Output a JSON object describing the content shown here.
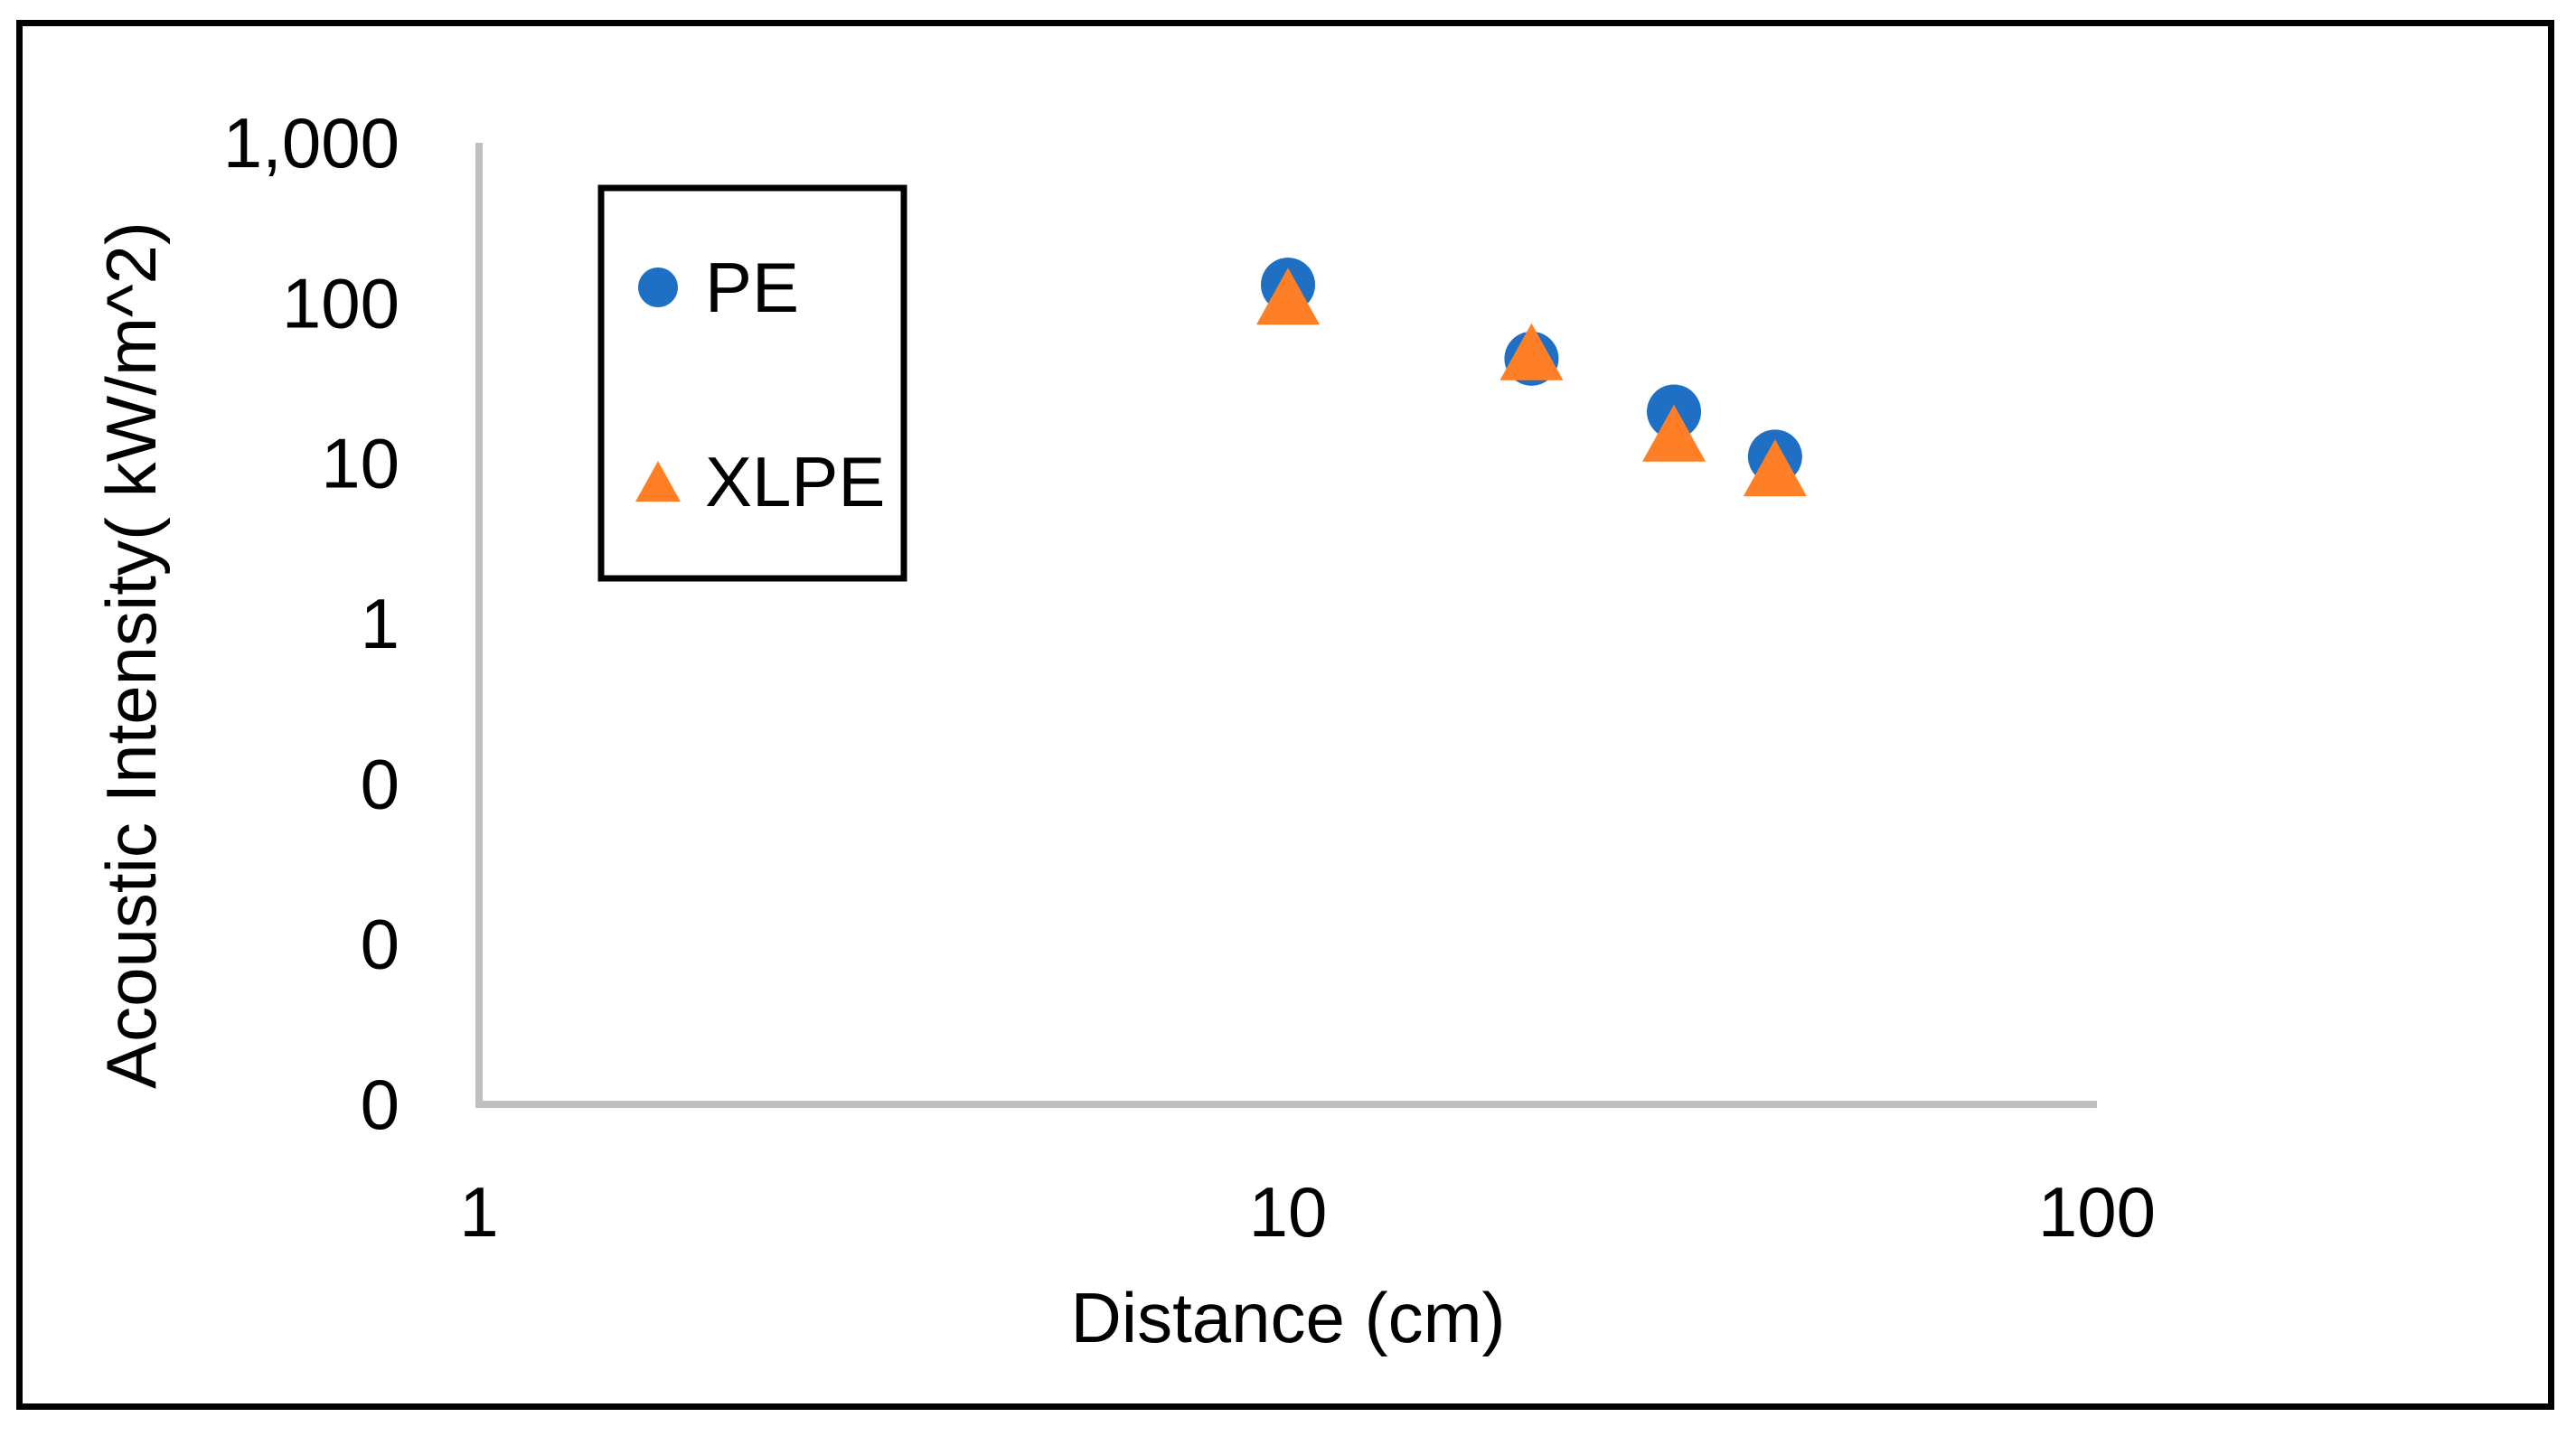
{
  "chart_data": {
    "type": "scatter",
    "title": "",
    "xlabel": "Distance (cm)",
    "ylabel": "Acoustic Intensity( kW/m^2)",
    "x_scale": "log",
    "y_scale": "log",
    "xlim": [
      1,
      100
    ],
    "ylim": [
      0.001,
      1000
    ],
    "x_ticks": [
      {
        "value": 1,
        "label": "1"
      },
      {
        "value": 10,
        "label": "10"
      },
      {
        "value": 100,
        "label": "100"
      }
    ],
    "y_ticks": [
      {
        "value": 0.001,
        "label": "0"
      },
      {
        "value": 0.01,
        "label": "0"
      },
      {
        "value": 0.1,
        "label": "0"
      },
      {
        "value": 1,
        "label": "1"
      },
      {
        "value": 10,
        "label": "10"
      },
      {
        "value": 100,
        "label": "100"
      },
      {
        "value": 1000,
        "label": "1,000"
      }
    ],
    "grid": false,
    "legend_position": "top-left",
    "series": [
      {
        "name": "PE",
        "marker": "circle",
        "color": "#1f6fc5",
        "points": [
          {
            "x": 10,
            "y": 130
          },
          {
            "x": 20,
            "y": 45
          },
          {
            "x": 30,
            "y": 21
          },
          {
            "x": 40,
            "y": 11
          }
        ]
      },
      {
        "name": "XLPE",
        "marker": "triangle",
        "color": "#ff7f27",
        "points": [
          {
            "x": 10,
            "y": 100
          },
          {
            "x": 20,
            "y": 45
          },
          {
            "x": 30,
            "y": 14
          },
          {
            "x": 40,
            "y": 8.5
          }
        ]
      }
    ]
  }
}
